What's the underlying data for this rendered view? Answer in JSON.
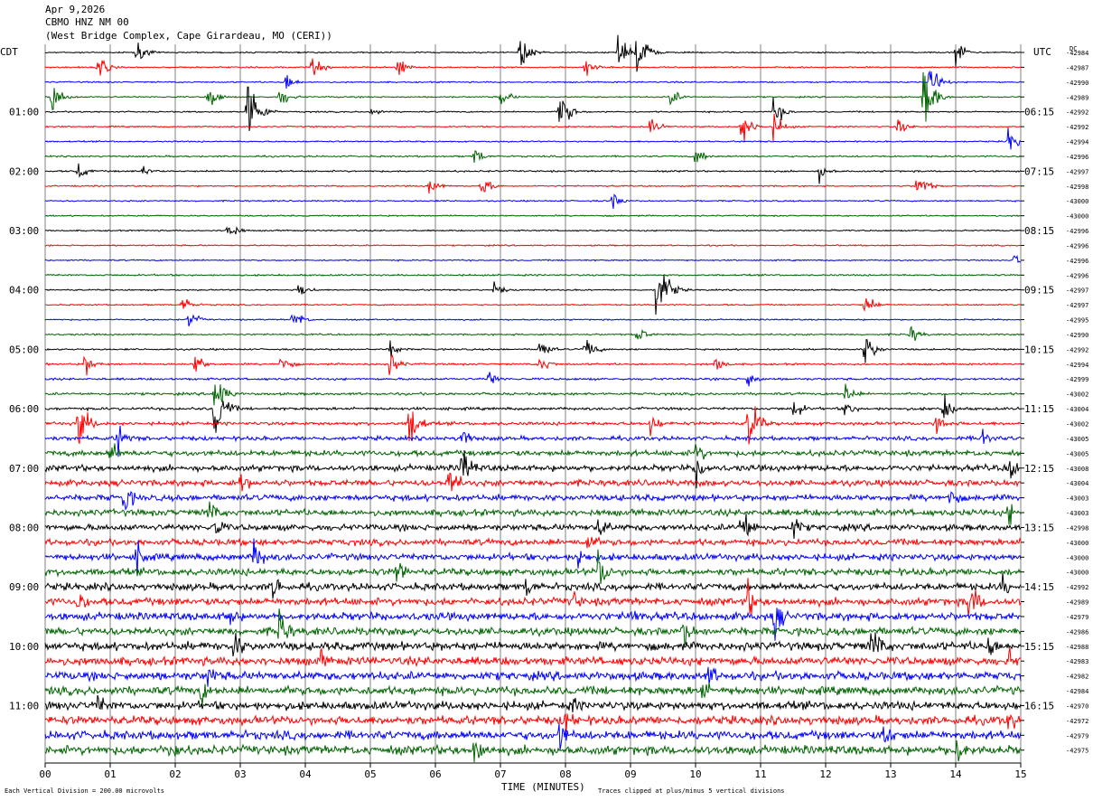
{
  "header": {
    "date": "Apr 9,2026",
    "station": "CBMO HNZ NM 00",
    "location": "(West Bridge Complex, Cape Girardeau, MO (CERI))"
  },
  "left_label": "CDT",
  "right_label": "UTC",
  "dc_label": "DC",
  "footer": {
    "scale_note": "Each Vertical Division =  200.00 microvolts",
    "clip_note": "Traces clipped at plus/minus 5 vertical divisions"
  },
  "colors": {
    "cycle": [
      "#000000",
      "#ff0000",
      "#0000ff",
      "#006400"
    ],
    "grid": "#808080"
  },
  "chart_data": {
    "type": "seismogram",
    "xlabel": "TIME (MINUTES)",
    "x_ticks": [
      "00",
      "01",
      "02",
      "03",
      "04",
      "05",
      "06",
      "07",
      "08",
      "09",
      "10",
      "11",
      "12",
      "13",
      "14",
      "15"
    ],
    "xlim": [
      0,
      15
    ],
    "left_time_labels": [
      {
        "trace": 4,
        "label": "01:00"
      },
      {
        "trace": 8,
        "label": "02:00"
      },
      {
        "trace": 12,
        "label": "03:00"
      },
      {
        "trace": 16,
        "label": "04:00"
      },
      {
        "trace": 20,
        "label": "05:00"
      },
      {
        "trace": 24,
        "label": "06:00"
      },
      {
        "trace": 28,
        "label": "07:00"
      },
      {
        "trace": 32,
        "label": "08:00"
      },
      {
        "trace": 36,
        "label": "09:00"
      },
      {
        "trace": 40,
        "label": "10:00"
      },
      {
        "trace": 44,
        "label": "11:00"
      }
    ],
    "right_time_labels": [
      {
        "trace": 4,
        "label": "06:15"
      },
      {
        "trace": 8,
        "label": "07:15"
      },
      {
        "trace": 12,
        "label": "08:15"
      },
      {
        "trace": 16,
        "label": "09:15"
      },
      {
        "trace": 20,
        "label": "10:15"
      },
      {
        "trace": 24,
        "label": "11:15"
      },
      {
        "trace": 28,
        "label": "12:15"
      },
      {
        "trace": 32,
        "label": "13:15"
      },
      {
        "trace": 36,
        "label": "14:15"
      },
      {
        "trace": 40,
        "label": "15:15"
      },
      {
        "trace": 44,
        "label": "16:15"
      }
    ],
    "dc_offsets": [
      "-42984",
      "-42987",
      "-42990",
      "-42989",
      "-42992",
      "-42992",
      "-42994",
      "-42996",
      "-42997",
      "-42998",
      "-43000",
      "-43000",
      "-42996",
      "-42996",
      "-42996",
      "-42996",
      "-42997",
      "-42997",
      "-42995",
      "-42990",
      "-42992",
      "-42994",
      "-42999",
      "-43002",
      "-43004",
      "-43002",
      "-43005",
      "-43005",
      "-43008",
      "-43004",
      "-43003",
      "-43003",
      "-42998",
      "-43000",
      "-43000",
      "-43000",
      "-42992",
      "-42989",
      "-42979",
      "-42986",
      "-42988",
      "-42983",
      "-42982",
      "-42984",
      "-42970",
      "-42972",
      "-42979",
      "-42975"
    ],
    "noise_level": [
      0.5,
      0.5,
      0.5,
      0.5,
      0.5,
      0.5,
      0.5,
      0.6,
      0.6,
      0.5,
      0.5,
      0.5,
      0.5,
      0.5,
      0.5,
      0.6,
      0.5,
      0.5,
      0.5,
      0.6,
      0.6,
      0.7,
      0.8,
      0.9,
      1.0,
      1.2,
      1.5,
      2.0,
      2.2,
      2.2,
      2.2,
      2.3,
      2.3,
      2.3,
      2.4,
      2.5,
      2.6,
      2.7,
      2.8,
      2.8,
      3.0,
      3.0,
      3.0,
      3.0,
      3.0,
      3.1,
      3.1,
      3.2
    ],
    "events": [
      {
        "trace": 0,
        "x": 1.4,
        "amp": 1.2
      },
      {
        "trace": 0,
        "x": 7.3,
        "amp": 2
      },
      {
        "trace": 0,
        "x": 8.8,
        "amp": 2
      },
      {
        "trace": 0,
        "x": 9.1,
        "amp": 3
      },
      {
        "trace": 0,
        "x": 14.0,
        "amp": 1.5
      },
      {
        "trace": 1,
        "x": 0.8,
        "amp": 1.5
      },
      {
        "trace": 1,
        "x": 4.1,
        "amp": 1.3
      },
      {
        "trace": 1,
        "x": 5.4,
        "amp": 1.3
      },
      {
        "trace": 1,
        "x": 8.3,
        "amp": 1
      },
      {
        "trace": 2,
        "x": 3.7,
        "amp": 1
      },
      {
        "trace": 2,
        "x": 13.6,
        "amp": 2
      },
      {
        "trace": 3,
        "x": 0.1,
        "amp": 2
      },
      {
        "trace": 3,
        "x": 2.5,
        "amp": 1.5
      },
      {
        "trace": 3,
        "x": 3.6,
        "amp": 1.2
      },
      {
        "trace": 3,
        "x": 7.0,
        "amp": 1
      },
      {
        "trace": 3,
        "x": 9.6,
        "amp": 1
      },
      {
        "trace": 3,
        "x": 13.5,
        "amp": 4
      },
      {
        "trace": 4,
        "x": 3.1,
        "amp": 5
      },
      {
        "trace": 4,
        "x": 7.9,
        "amp": 2.5
      },
      {
        "trace": 4,
        "x": 11.2,
        "amp": 1.5
      },
      {
        "trace": 4,
        "x": 5.0,
        "amp": 0.6
      },
      {
        "trace": 5,
        "x": 9.3,
        "amp": 1
      },
      {
        "trace": 5,
        "x": 10.7,
        "amp": 2
      },
      {
        "trace": 5,
        "x": 11.2,
        "amp": 1.5
      },
      {
        "trace": 5,
        "x": 13.1,
        "amp": 1
      },
      {
        "trace": 6,
        "x": 14.8,
        "amp": 1.5
      },
      {
        "trace": 7,
        "x": 6.6,
        "amp": 1
      },
      {
        "trace": 7,
        "x": 10.0,
        "amp": 1
      },
      {
        "trace": 8,
        "x": 0.5,
        "amp": 1
      },
      {
        "trace": 8,
        "x": 1.5,
        "amp": 0.8
      },
      {
        "trace": 8,
        "x": 11.9,
        "amp": 1
      },
      {
        "trace": 9,
        "x": 5.9,
        "amp": 1
      },
      {
        "trace": 9,
        "x": 6.7,
        "amp": 1.2
      },
      {
        "trace": 9,
        "x": 13.4,
        "amp": 1.8
      },
      {
        "trace": 10,
        "x": 8.7,
        "amp": 1
      },
      {
        "trace": 12,
        "x": 2.8,
        "amp": 1.2
      },
      {
        "trace": 14,
        "x": 14.9,
        "amp": 0.8
      },
      {
        "trace": 16,
        "x": 3.9,
        "amp": 1
      },
      {
        "trace": 16,
        "x": 6.9,
        "amp": 0.8
      },
      {
        "trace": 16,
        "x": 9.4,
        "amp": 5
      },
      {
        "trace": 17,
        "x": 2.1,
        "amp": 1
      },
      {
        "trace": 17,
        "x": 12.6,
        "amp": 1.3
      },
      {
        "trace": 18,
        "x": 2.2,
        "amp": 1
      },
      {
        "trace": 18,
        "x": 3.8,
        "amp": 1.2
      },
      {
        "trace": 19,
        "x": 9.1,
        "amp": 1
      },
      {
        "trace": 19,
        "x": 13.3,
        "amp": 1
      },
      {
        "trace": 20,
        "x": 5.3,
        "amp": 1
      },
      {
        "trace": 20,
        "x": 7.6,
        "amp": 1.2
      },
      {
        "trace": 20,
        "x": 8.3,
        "amp": 1.5
      },
      {
        "trace": 20,
        "x": 12.6,
        "amp": 2
      },
      {
        "trace": 21,
        "x": 0.6,
        "amp": 1.3
      },
      {
        "trace": 21,
        "x": 2.3,
        "amp": 1.3
      },
      {
        "trace": 21,
        "x": 3.6,
        "amp": 1.3
      },
      {
        "trace": 21,
        "x": 5.3,
        "amp": 1.3
      },
      {
        "trace": 21,
        "x": 7.6,
        "amp": 1.2
      },
      {
        "trace": 21,
        "x": 10.3,
        "amp": 1
      },
      {
        "trace": 22,
        "x": 6.8,
        "amp": 1
      },
      {
        "trace": 22,
        "x": 10.8,
        "amp": 1
      },
      {
        "trace": 23,
        "x": 2.6,
        "amp": 3
      },
      {
        "trace": 23,
        "x": 12.3,
        "amp": 1.3
      },
      {
        "trace": 24,
        "x": 2.6,
        "amp": 4
      },
      {
        "trace": 24,
        "x": 11.5,
        "amp": 1.3
      },
      {
        "trace": 24,
        "x": 13.8,
        "amp": 1.8
      },
      {
        "trace": 24,
        "x": 12.3,
        "amp": 1
      },
      {
        "trace": 25,
        "x": 0.5,
        "amp": 3
      },
      {
        "trace": 25,
        "x": 5.6,
        "amp": 3
      },
      {
        "trace": 25,
        "x": 10.8,
        "amp": 3.5
      },
      {
        "trace": 25,
        "x": 9.3,
        "amp": 1.3
      },
      {
        "trace": 25,
        "x": 13.7,
        "amp": 1.5
      },
      {
        "trace": 26,
        "x": 1.1,
        "amp": 2
      },
      {
        "trace": 26,
        "x": 6.4,
        "amp": 1.5
      },
      {
        "trace": 26,
        "x": 14.4,
        "amp": 1.5
      },
      {
        "trace": 27,
        "x": 1.0,
        "amp": 1.5
      },
      {
        "trace": 27,
        "x": 10.0,
        "amp": 1.5
      },
      {
        "trace": 28,
        "x": 6.4,
        "amp": 2.8
      },
      {
        "trace": 28,
        "x": 10.0,
        "amp": 2
      },
      {
        "trace": 28,
        "x": 14.8,
        "amp": 1.8
      },
      {
        "trace": 29,
        "x": 6.2,
        "amp": 2.5
      },
      {
        "trace": 29,
        "x": 3.0,
        "amp": 1.5
      },
      {
        "trace": 30,
        "x": 1.2,
        "amp": 2
      },
      {
        "trace": 30,
        "x": 13.9,
        "amp": 1.5
      },
      {
        "trace": 31,
        "x": 2.5,
        "amp": 1.8
      },
      {
        "trace": 31,
        "x": 14.8,
        "amp": 1.5
      },
      {
        "trace": 32,
        "x": 10.7,
        "amp": 3
      },
      {
        "trace": 32,
        "x": 8.5,
        "amp": 1.8
      },
      {
        "trace": 32,
        "x": 11.5,
        "amp": 1.5
      },
      {
        "trace": 32,
        "x": 2.6,
        "amp": 1.5
      },
      {
        "trace": 33,
        "x": 8.3,
        "amp": 2
      },
      {
        "trace": 34,
        "x": 1.4,
        "amp": 2
      },
      {
        "trace": 34,
        "x": 3.2,
        "amp": 2.2
      },
      {
        "trace": 34,
        "x": 8.2,
        "amp": 1.8
      },
      {
        "trace": 35,
        "x": 8.5,
        "amp": 2.5
      },
      {
        "trace": 35,
        "x": 5.4,
        "amp": 1.8
      },
      {
        "trace": 36,
        "x": 3.5,
        "amp": 1.8
      },
      {
        "trace": 36,
        "x": 7.4,
        "amp": 1.5
      },
      {
        "trace": 36,
        "x": 14.7,
        "amp": 1.5
      },
      {
        "trace": 37,
        "x": 14.2,
        "amp": 3
      },
      {
        "trace": 37,
        "x": 0.5,
        "amp": 1.5
      },
      {
        "trace": 37,
        "x": 8.1,
        "amp": 1.5
      },
      {
        "trace": 37,
        "x": 10.8,
        "amp": 2
      },
      {
        "trace": 38,
        "x": 11.2,
        "amp": 2.5
      },
      {
        "trace": 38,
        "x": 2.8,
        "amp": 1.8
      },
      {
        "trace": 38,
        "x": 9.0,
        "amp": 1.5
      },
      {
        "trace": 39,
        "x": 3.6,
        "amp": 2.5
      },
      {
        "trace": 39,
        "x": 9.8,
        "amp": 2
      },
      {
        "trace": 40,
        "x": 12.7,
        "amp": 3
      },
      {
        "trace": 40,
        "x": 2.9,
        "amp": 2
      },
      {
        "trace": 40,
        "x": 14.5,
        "amp": 1.5
      },
      {
        "trace": 41,
        "x": 4.2,
        "amp": 1.5
      },
      {
        "trace": 41,
        "x": 14.8,
        "amp": 1.5
      },
      {
        "trace": 42,
        "x": 2.5,
        "amp": 1.5
      },
      {
        "trace": 42,
        "x": 10.2,
        "amp": 1.5
      },
      {
        "trace": 43,
        "x": 2.4,
        "amp": 1.5
      },
      {
        "trace": 43,
        "x": 10.1,
        "amp": 1.5
      },
      {
        "trace": 44,
        "x": 0.8,
        "amp": 1.5
      },
      {
        "trace": 44,
        "x": 8.1,
        "amp": 1.2
      },
      {
        "trace": 45,
        "x": 8.0,
        "amp": 1.8
      },
      {
        "trace": 45,
        "x": 14.8,
        "amp": 1.5
      },
      {
        "trace": 46,
        "x": 7.9,
        "amp": 2
      },
      {
        "trace": 46,
        "x": 12.9,
        "amp": 2
      },
      {
        "trace": 47,
        "x": 1.9,
        "amp": 2
      },
      {
        "trace": 47,
        "x": 6.6,
        "amp": 2.5
      },
      {
        "trace": 47,
        "x": 14.0,
        "amp": 2.5
      }
    ]
  }
}
